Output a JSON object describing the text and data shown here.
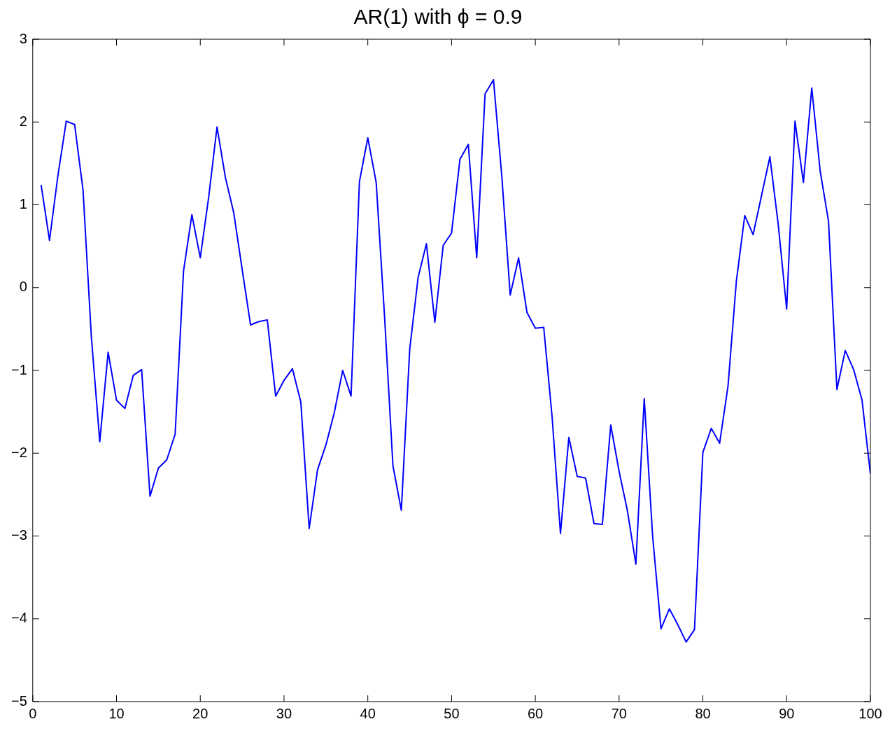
{
  "chart_data": {
    "type": "line",
    "title": "AR(1) with ϕ = 0.9",
    "x": [
      1,
      2,
      3,
      4,
      5,
      6,
      7,
      8,
      9,
      10,
      11,
      12,
      13,
      14,
      15,
      16,
      17,
      18,
      19,
      20,
      21,
      22,
      23,
      24,
      25,
      26,
      27,
      28,
      29,
      30,
      31,
      32,
      33,
      34,
      35,
      36,
      37,
      38,
      39,
      40,
      41,
      42,
      43,
      44,
      45,
      46,
      47,
      48,
      49,
      50,
      51,
      52,
      53,
      54,
      55,
      56,
      57,
      58,
      59,
      60,
      61,
      62,
      63,
      64,
      65,
      66,
      67,
      68,
      69,
      70,
      71,
      72,
      73,
      74,
      75,
      76,
      77,
      78,
      79,
      80,
      81,
      82,
      83,
      84,
      85,
      86,
      87,
      88,
      89,
      90,
      91,
      92,
      93,
      94,
      95,
      96,
      97,
      98,
      99,
      100
    ],
    "series": [
      {
        "color": "#0000ff",
        "values": [
          1.24,
          0.57,
          1.35,
          2.01,
          1.97,
          1.18,
          -0.6,
          -1.86,
          -0.78,
          -1.36,
          -1.46,
          -1.06,
          -0.99,
          -2.52,
          -2.18,
          -2.08,
          -1.77,
          0.2,
          0.88,
          0.36,
          1.09,
          1.94,
          1.33,
          0.9,
          0.22,
          -0.45,
          -0.41,
          -0.39,
          -1.31,
          -1.12,
          -0.98,
          -1.38,
          -2.91,
          -2.2,
          -1.9,
          -1.51,
          -1.0,
          -1.31,
          1.28,
          1.81,
          1.27,
          -0.35,
          -2.15,
          -2.69,
          -0.75,
          0.12,
          0.53,
          -0.42,
          0.51,
          0.66,
          1.55,
          1.73,
          0.36,
          2.34,
          2.51,
          1.34,
          -0.09,
          0.36,
          -0.3,
          -0.49,
          -0.48,
          -1.56,
          -2.97,
          -1.81,
          -2.28,
          -2.3,
          -2.85,
          -2.86,
          -1.66,
          -2.22,
          -2.7,
          -3.34,
          -1.34,
          -3.0,
          -4.12,
          -3.88,
          -4.07,
          -4.28,
          -4.13,
          -1.99,
          -1.7,
          -1.88,
          -1.19,
          0.08,
          0.87,
          0.64,
          1.11,
          1.58,
          0.76,
          -0.26,
          2.01,
          1.27,
          2.41,
          1.41,
          0.8,
          -1.23,
          -0.76,
          -0.99,
          -1.36,
          -2.25
        ]
      }
    ],
    "xlim": [
      0,
      100
    ],
    "xticks": [
      0,
      10,
      20,
      30,
      40,
      50,
      60,
      70,
      80,
      90,
      100
    ],
    "ylim": [
      -5,
      3
    ],
    "yticks": [
      -5,
      -4,
      -3,
      -2,
      -1,
      0,
      1,
      2,
      3
    ],
    "grid": false,
    "legend": false,
    "marker": "none",
    "line_style": "solid"
  }
}
